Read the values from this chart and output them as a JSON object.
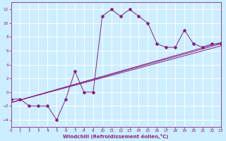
{
  "xlabel": "Windchill (Refroidissement éolien,°C)",
  "background_color": "#cceeff",
  "grid_color": "#aaddcc",
  "line_color": "#882288",
  "xlim": [
    0,
    23
  ],
  "ylim": [
    -5,
    13
  ],
  "xticks": [
    0,
    1,
    2,
    3,
    4,
    5,
    6,
    7,
    8,
    9,
    10,
    11,
    12,
    13,
    14,
    15,
    16,
    17,
    18,
    19,
    20,
    21,
    22,
    23
  ],
  "yticks": [
    -4,
    -2,
    0,
    2,
    4,
    6,
    8,
    10,
    12
  ],
  "main_series": [
    [
      0,
      -1
    ],
    [
      1,
      -1
    ],
    [
      2,
      -2
    ],
    [
      3,
      -2
    ],
    [
      4,
      -2
    ],
    [
      5,
      -4
    ],
    [
      6,
      -1
    ],
    [
      7,
      3
    ],
    [
      8,
      0
    ],
    [
      9,
      0
    ],
    [
      10,
      11
    ],
    [
      11,
      12
    ],
    [
      12,
      11
    ],
    [
      13,
      12
    ],
    [
      14,
      11
    ],
    [
      15,
      10
    ],
    [
      16,
      7
    ],
    [
      17,
      6.5
    ],
    [
      18,
      6.5
    ],
    [
      19,
      9
    ],
    [
      20,
      7
    ],
    [
      21,
      6.5
    ],
    [
      22,
      7
    ],
    [
      23,
      7
    ]
  ],
  "line1": [
    [
      0,
      -1.5
    ],
    [
      23,
      7.2
    ]
  ],
  "line2": [
    [
      0,
      -1.5
    ],
    [
      23,
      7.0
    ]
  ],
  "line3": [
    [
      0,
      -1.5
    ],
    [
      23,
      6.7
    ]
  ]
}
